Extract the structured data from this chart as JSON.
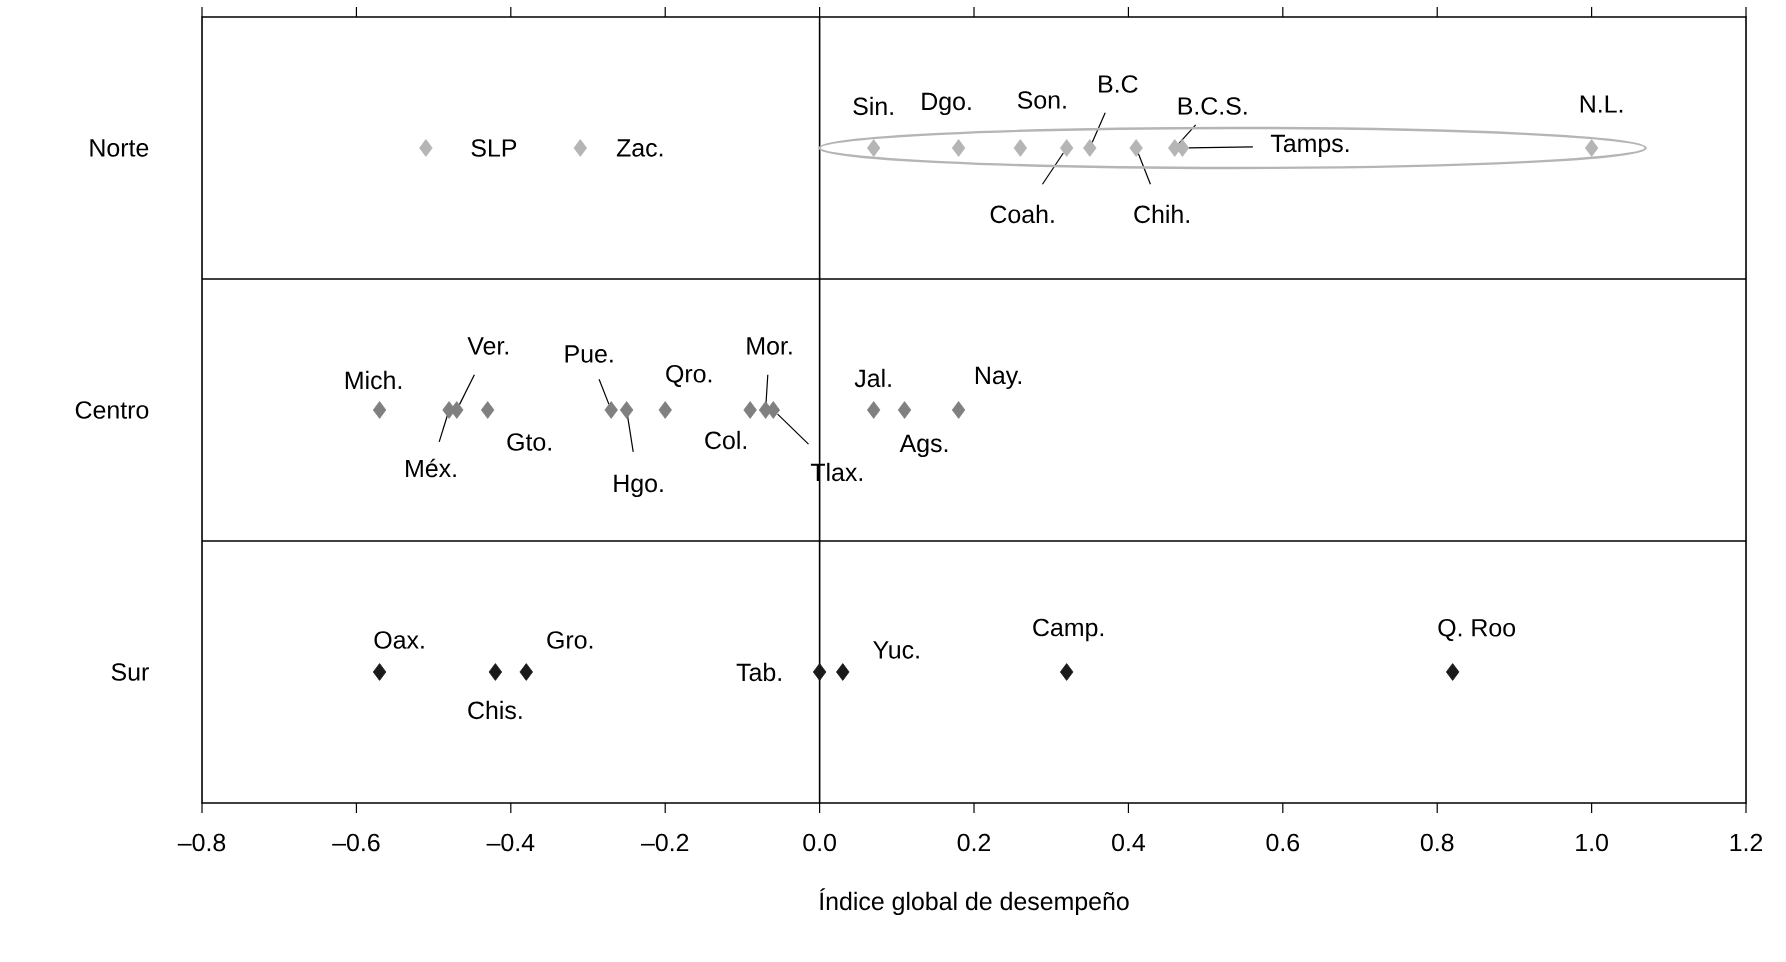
{
  "chart_data": {
    "type": "scatter",
    "orientation": "horizontal",
    "xlabel": "Índice global de desempeño",
    "categories": [
      "Norte",
      "Centro",
      "Sur"
    ],
    "xlim": [
      -0.8,
      1.2
    ],
    "xticks": [
      {
        "value": -0.8,
        "label": "–0.8"
      },
      {
        "value": -0.6,
        "label": "–0.6"
      },
      {
        "value": -0.4,
        "label": "–0.4"
      },
      {
        "value": -0.2,
        "label": "–0.2"
      },
      {
        "value": 0,
        "label": "0.0"
      },
      0.2,
      0.4,
      0.6,
      0.8,
      {
        "value": 1,
        "label": "1.0"
      },
      1.2
    ],
    "marker": "diamond",
    "series": [
      {
        "name": "SLP",
        "color": "#b5b5b5",
        "values": [
          -0.51,
          null,
          null
        ]
      },
      {
        "name": "Zac.",
        "color": "#b5b5b5",
        "values": [
          -0.31,
          null,
          null
        ]
      },
      {
        "name": "Sin.",
        "color": "#b5b5b5",
        "values": [
          0.07,
          null,
          null
        ]
      },
      {
        "name": "Dgo.",
        "color": "#b5b5b5",
        "values": [
          0.18,
          null,
          null
        ]
      },
      {
        "name": "Son.",
        "color": "#b5b5b5",
        "values": [
          0.26,
          null,
          null
        ]
      },
      {
        "name": "Coah.",
        "color": "#b5b5b5",
        "values": [
          0.32,
          null,
          null
        ]
      },
      {
        "name": "B.C",
        "color": "#b5b5b5",
        "values": [
          0.35,
          null,
          null
        ]
      },
      {
        "name": "Chih.",
        "color": "#b5b5b5",
        "values": [
          0.41,
          null,
          null
        ]
      },
      {
        "name": "B.C.S.",
        "color": "#b5b5b5",
        "values": [
          0.46,
          null,
          null
        ]
      },
      {
        "name": "Tamps.",
        "color": "#b5b5b5",
        "values": [
          0.47,
          null,
          null
        ]
      },
      {
        "name": "N.L.",
        "color": "#b5b5b5",
        "values": [
          1.0,
          null,
          null
        ]
      },
      {
        "name": "Mich.",
        "color": "#808080",
        "values": [
          null,
          -0.57,
          null
        ]
      },
      {
        "name": "Méx.",
        "color": "#808080",
        "values": [
          null,
          -0.48,
          null
        ]
      },
      {
        "name": "Ver.",
        "color": "#808080",
        "values": [
          null,
          -0.47,
          null
        ]
      },
      {
        "name": "Gto.",
        "color": "#808080",
        "values": [
          null,
          -0.43,
          null
        ]
      },
      {
        "name": "Pue.",
        "color": "#808080",
        "values": [
          null,
          -0.27,
          null
        ]
      },
      {
        "name": "Hgo.",
        "color": "#808080",
        "values": [
          null,
          -0.25,
          null
        ]
      },
      {
        "name": "Qro.",
        "color": "#808080",
        "values": [
          null,
          -0.2,
          null
        ]
      },
      {
        "name": "Col.",
        "color": "#808080",
        "values": [
          null,
          -0.09,
          null
        ]
      },
      {
        "name": "Mor.",
        "color": "#808080",
        "values": [
          null,
          -0.07,
          null
        ]
      },
      {
        "name": "Tlax.",
        "color": "#808080",
        "values": [
          null,
          -0.06,
          null
        ]
      },
      {
        "name": "Jal.",
        "color": "#808080",
        "values": [
          null,
          0.07,
          null
        ]
      },
      {
        "name": "Ags.",
        "color": "#808080",
        "values": [
          null,
          0.11,
          null
        ]
      },
      {
        "name": "Nay.",
        "color": "#808080",
        "values": [
          null,
          0.18,
          null
        ]
      },
      {
        "name": "Oax.",
        "color": "#1a1a1a",
        "values": [
          null,
          null,
          -0.57
        ]
      },
      {
        "name": "Chis.",
        "color": "#1a1a1a",
        "values": [
          null,
          null,
          -0.42
        ]
      },
      {
        "name": "Gro.",
        "color": "#1a1a1a",
        "values": [
          null,
          null,
          -0.38
        ]
      },
      {
        "name": "Tab.",
        "color": "#1a1a1a",
        "values": [
          null,
          null,
          0.0
        ]
      },
      {
        "name": "Yuc.",
        "color": "#1a1a1a",
        "values": [
          null,
          null,
          0.03
        ]
      },
      {
        "name": "Camp.",
        "color": "#1a1a1a",
        "values": [
          null,
          null,
          0.32
        ]
      },
      {
        "name": "Q. Roo",
        "color": "#1a1a1a",
        "values": [
          null,
          null,
          0.82
        ]
      }
    ],
    "ref_lines": [
      {
        "axis": "x",
        "value": 0
      }
    ]
  }
}
